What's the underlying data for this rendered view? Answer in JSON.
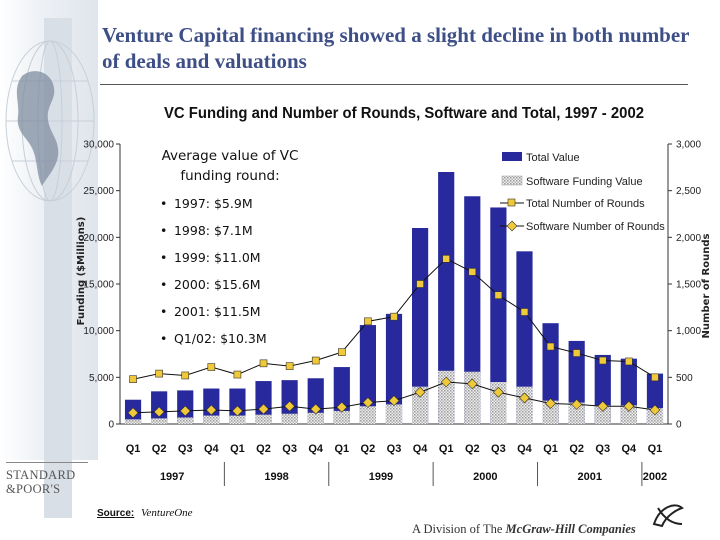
{
  "slide": {
    "title": "Venture Capital financing showed a slight decline in both number of deals and valuations"
  },
  "callout": {
    "heading": "Average value of VC funding round:",
    "items": [
      "1997: $5.9M",
      "1998: $7.1M",
      "1999: $11.0M",
      "2000: $15.6M",
      "2001: $11.5M",
      "Q1/02: $10.3M"
    ]
  },
  "footer": {
    "source_label": "Source:",
    "source_value": "VentureOne",
    "sp_logo": "STANDARD &POOR'S",
    "division_text": "A Division of The",
    "company_name": "McGraw-Hill Companies"
  },
  "colors": {
    "total_value": "#27299c",
    "software_value": "#c9c9c9",
    "total_rounds_marker": "#f0c93a",
    "software_rounds_marker": "#f0c93a",
    "title": "#3d4f86"
  },
  "chart_data": {
    "type": "bar",
    "title": "VC Funding and Number of Rounds, Software and Total, 1997 - 2002",
    "ylabel": "Funding ($Millions)",
    "y2label": "Number of Rounds",
    "ylim": [
      0,
      30000
    ],
    "y2lim": [
      0,
      3000
    ],
    "yticks": [
      "0",
      "5,000",
      "10,000",
      "15,000",
      "20,000",
      "25,000",
      "30,000"
    ],
    "y2ticks": [
      "0",
      "500",
      "1,000",
      "1,500",
      "2,000",
      "2,500",
      "3,000"
    ],
    "categories": [
      "Q1",
      "Q2",
      "Q3",
      "Q4",
      "Q1",
      "Q2",
      "Q3",
      "Q4",
      "Q1",
      "Q2",
      "Q3",
      "Q4",
      "Q1",
      "Q2",
      "Q3",
      "Q4",
      "Q1",
      "Q2",
      "Q3",
      "Q4",
      "Q1"
    ],
    "years": [
      {
        "label": "1997",
        "count": 4
      },
      {
        "label": "1998",
        "count": 4
      },
      {
        "label": "1999",
        "count": 4
      },
      {
        "label": "2000",
        "count": 4
      },
      {
        "label": "2001",
        "count": 4
      },
      {
        "label": "2002",
        "count": 1
      }
    ],
    "series": [
      {
        "name": "Total Value",
        "kind": "bar",
        "axis": "left",
        "values": [
          2600,
          3500,
          3600,
          3800,
          3800,
          4600,
          4700,
          4900,
          6100,
          10600,
          11800,
          21000,
          27000,
          24400,
          23200,
          18500,
          10800,
          8900,
          7400,
          7000,
          5400
        ]
      },
      {
        "name": "Software Funding Value",
        "kind": "bar",
        "axis": "left",
        "values": [
          500,
          600,
          700,
          900,
          900,
          1000,
          1100,
          1200,
          1400,
          1900,
          2100,
          4000,
          5700,
          5600,
          4500,
          4000,
          2500,
          2300,
          2000,
          2000,
          1700
        ]
      },
      {
        "name": "Total Number of Rounds",
        "kind": "line",
        "axis": "right",
        "values": [
          480,
          540,
          520,
          610,
          530,
          650,
          620,
          680,
          770,
          1100,
          1150,
          1500,
          1770,
          1630,
          1380,
          1200,
          830,
          760,
          680,
          670,
          500
        ]
      },
      {
        "name": "Software Number of Rounds",
        "kind": "line",
        "axis": "right",
        "values": [
          120,
          130,
          140,
          150,
          140,
          160,
          190,
          160,
          180,
          230,
          250,
          340,
          450,
          430,
          340,
          280,
          220,
          210,
          190,
          190,
          150
        ]
      }
    ],
    "legend_position": "top-right"
  }
}
